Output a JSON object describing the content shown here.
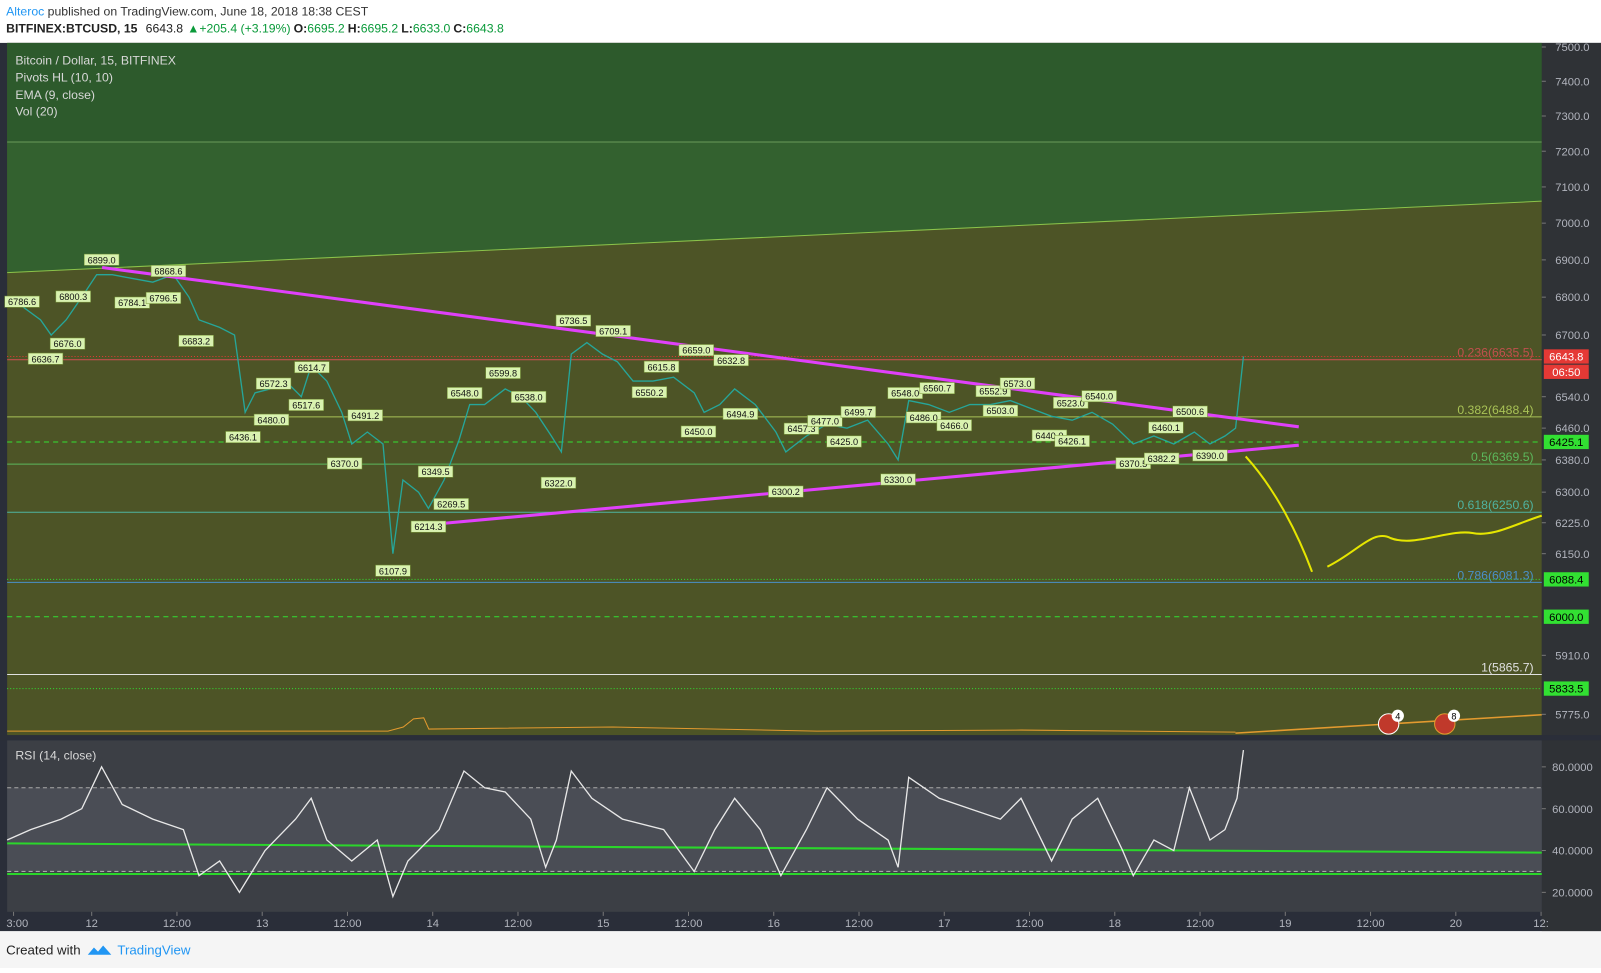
{
  "header": {
    "author": "Alteroc",
    "published": " published on TradingView.com, June 18, 2018 18:38 CEST",
    "symbol": "BITFINEX:BTCUSD, 15",
    "last": "6643.8",
    "change": "▲+205.4 (+3.19%)",
    "ohlc": [
      {
        "label": "O:",
        "value": "6695.2"
      },
      {
        "label": "H:",
        "value": "6695.2"
      },
      {
        "label": "L:",
        "value": "6633.0"
      },
      {
        "label": "C:",
        "value": "6643.8"
      }
    ]
  },
  "legend": [
    "Bitcoin / Dollar, 15, BITFINEX",
    "Pivots HL (10, 10)",
    "EMA (9, close)",
    "Vol (20)"
  ],
  "events": [
    "4",
    "8"
  ],
  "footer": {
    "created": "Created with",
    "brand": "TradingView"
  },
  "chart_data": [
    {
      "type": "line",
      "log_scale": true,
      "color": "#26a69a",
      "xlim": [
        -11.9,
        204.1
      ],
      "ylim": [
        5728,
        7512
      ],
      "yticks": [
        {
          "value": 7500,
          "label": "7500.0"
        },
        {
          "value": 7400,
          "label": "7400.0"
        },
        {
          "value": 7300,
          "label": "7300.0"
        },
        {
          "value": 7200,
          "label": "7200.0"
        },
        {
          "value": 7100,
          "label": "7100.0"
        },
        {
          "value": 7000,
          "label": "7000.0"
        },
        {
          "value": 6900,
          "label": "6900.0"
        },
        {
          "value": 6800,
          "label": "6800.0"
        },
        {
          "value": 6700,
          "label": "6700.0"
        },
        {
          "value": 6540,
          "label": "6540.0"
        },
        {
          "value": 6460,
          "label": "6460.0"
        },
        {
          "value": 6380,
          "label": "6380.0"
        },
        {
          "value": 6300,
          "label": "6300.0"
        },
        {
          "value": 6225,
          "label": "6225.0"
        },
        {
          "value": 6150,
          "label": "6150.0"
        },
        {
          "value": 5910,
          "label": "5910.0"
        },
        {
          "value": 5775,
          "label": "5775.0"
        }
      ],
      "x": [
        -11.9,
        -10.1,
        -7.2,
        -5.7,
        -3.6,
        -1.4,
        0.7,
        2.9,
        5.7,
        8.6,
        11.5,
        13.7,
        15.1,
        18.0,
        20.1,
        21.6,
        23.0,
        25.1,
        27.3,
        29.5,
        30.9,
        33.1,
        35.2,
        36.6,
        38.8,
        41.0,
        42.4,
        43.8,
        46.0,
        47.4,
        49.6,
        51.7,
        53.2,
        55.3,
        58.2,
        60.4,
        62.5,
        64.7,
        66.1,
        67.5,
        69.7,
        71.9,
        74.0,
        76.2,
        79.0,
        81.9,
        84.8,
        86.2,
        88.4,
        90.5,
        93.4,
        96.3,
        97.7,
        100.6,
        103.5,
        106.3,
        109.2,
        112.1,
        113.5,
        115.0,
        117.8,
        120.7,
        123.6,
        126.5,
        129.3,
        132.2,
        135.1,
        138.0,
        140.8,
        143.7,
        146.6,
        149.5,
        152.3,
        155.2,
        157.4,
        159.5,
        161.0,
        162.1
      ],
      "values": [
        6790,
        6780,
        6740,
        6700,
        6740,
        6800,
        6860,
        6860,
        6850,
        6840,
        6860,
        6800,
        6740,
        6720,
        6700,
        6500,
        6550,
        6560,
        6580,
        6540,
        6620,
        6580,
        6500,
        6420,
        6450,
        6420,
        6150,
        6330,
        6300,
        6260,
        6330,
        6430,
        6520,
        6520,
        6560,
        6540,
        6500,
        6440,
        6400,
        6650,
        6680,
        6650,
        6630,
        6580,
        6580,
        6590,
        6550,
        6500,
        6520,
        6560,
        6520,
        6450,
        6400,
        6440,
        6470,
        6460,
        6480,
        6420,
        6380,
        6530,
        6520,
        6500,
        6520,
        6520,
        6530,
        6510,
        6490,
        6480,
        6500,
        6470,
        6420,
        6440,
        6420,
        6450,
        6420,
        6440,
        6460,
        6643.8
      ],
      "pivots": {
        "x": [
          1.4,
          10.8,
          -9.8,
          -2.6,
          5.7,
          10.1,
          14.7,
          -6.5,
          -3.4,
          25.6,
          31.0,
          21.3,
          25.3,
          30.2,
          38.5,
          35.6,
          42.4,
          47.4,
          50.6,
          48.4,
          52.5,
          57.9,
          61.5,
          65.7,
          67.8,
          73.4,
          85.1,
          90.0,
          80.2,
          78.5,
          85.4,
          91.3,
          99.9,
          103.2,
          107.9,
          105.9,
          97.7,
          113.5,
          114.5,
          119.0,
          117.1,
          121.4,
          126.9,
          130.3,
          127.9,
          137.8,
          141.8,
          134.8,
          138.0,
          151.2,
          154.6,
          146.6,
          150.6,
          157.4
        ],
        "values": [
          6899,
          6868.6,
          6786.6,
          6800.3,
          6784.1,
          6796.5,
          6683.2,
          6636.7,
          6676,
          6572.3,
          6614.7,
          6436.1,
          6480,
          6517.6,
          6491.2,
          6370,
          6107.9,
          6214.3,
          6269.5,
          6349.5,
          6548,
          6599.8,
          6538,
          6322,
          6736.5,
          6709.1,
          6659,
          6632.8,
          6615.8,
          6550.2,
          6450,
          6494.9,
          6457.3,
          6477,
          6499.7,
          6425,
          6300.2,
          6330,
          6548,
          6560.7,
          6486,
          6466,
          6552.9,
          6573,
          6503,
          6523,
          6540,
          6440,
          6426.1,
          6460.1,
          6500.6,
          6370.5,
          6382.2,
          6390
        ],
        "value_labels": [
          "6899.0",
          "6868.6",
          "6786.6",
          "6800.3",
          "6784.1",
          "6796.5",
          "6683.2",
          "6636.7",
          "6676.0",
          "6572.3",
          "6614.7",
          "6436.1",
          "6480.0",
          "6517.6",
          "6491.2",
          "6370.0",
          "6107.9",
          "6214.3",
          "6269.5",
          "6349.5",
          "6548.0",
          "6599.8",
          "6538.0",
          "6322.0",
          "6736.5",
          "6709.1",
          "6659.0",
          "6632.8",
          "6615.8",
          "6550.2",
          "6450.0",
          "6494.9",
          "6457.3",
          "6477.0",
          "6499.7",
          "6425.0",
          "6300.2",
          "6330.0",
          "6548.0",
          "6560.7",
          "6486.0",
          "6466.0",
          "6552.9",
          "6573.0",
          "6503.0",
          "6523.0",
          "6540.0",
          "6440.0",
          "6426.1",
          "6460.1",
          "6500.6",
          "6370.5",
          "6382.2",
          "6390.0"
        ]
      },
      "fib": [
        {
          "label": "0.236(6635.5)",
          "value": 6635.5,
          "color": "#c0504d"
        },
        {
          "label": "0.382(6488.4)",
          "value": 6488.4,
          "color": "#a8c256"
        },
        {
          "label": "0.5(6369.5)",
          "value": 6369.5,
          "color": "#5cb85c"
        },
        {
          "label": "0.618(6250.6)",
          "value": 6250.6,
          "color": "#4fb3a0"
        },
        {
          "label": "0.786(6081.3)",
          "value": 6081.3,
          "color": "#4a90c8"
        },
        {
          "label": "1(5865.7)",
          "value": 5865.7,
          "color": "#e0e0e0"
        }
      ],
      "price_lines": [
        {
          "value": 6643.8,
          "label": "6643.8",
          "color": "#e53935"
        },
        {
          "value": 6425.1,
          "label": "6425.1",
          "color": "#32e032"
        },
        {
          "value": 6088.4,
          "label": "6088.4",
          "color": "#32e032"
        },
        {
          "value": 6000,
          "label": "6000.0",
          "color": "#32e032"
        },
        {
          "value": 5833.5,
          "label": "5833.5",
          "color": "#32e032"
        }
      ],
      "countdown": "06:50"
    },
    {
      "type": "line",
      "title": "RSI (14, close)",
      "color": "#e8e8e8",
      "xlim": [
        -11.9,
        204.1
      ],
      "ylim": [
        10.7,
        92.7
      ],
      "bands": [
        30,
        70
      ],
      "yticks": [
        {
          "value": 80,
          "label": "80.0000"
        },
        {
          "value": 60,
          "label": "60.0000"
        },
        {
          "value": 40,
          "label": "40.0000"
        },
        {
          "value": 20,
          "label": "20.0000"
        }
      ],
      "xticks": [
        {
          "value": -11,
          "label": "3:00"
        },
        {
          "value": 0,
          "label": "12"
        },
        {
          "value": 12,
          "label": "12:00"
        },
        {
          "value": 24,
          "label": "13"
        },
        {
          "value": 36,
          "label": "12:00"
        },
        {
          "value": 48,
          "label": "14"
        },
        {
          "value": 60,
          "label": "12:00"
        },
        {
          "value": 72,
          "label": "15"
        },
        {
          "value": 84,
          "label": "12:00"
        },
        {
          "value": 96,
          "label": "16"
        },
        {
          "value": 108,
          "label": "12:00"
        },
        {
          "value": 120,
          "label": "17"
        },
        {
          "value": 132,
          "label": "12:00"
        },
        {
          "value": 144,
          "label": "18"
        },
        {
          "value": 156,
          "label": "12:00"
        },
        {
          "value": 168,
          "label": "19"
        },
        {
          "value": 180,
          "label": "12:00"
        },
        {
          "value": 192,
          "label": "20"
        },
        {
          "value": 204,
          "label": "12:"
        }
      ],
      "x": [
        -11.9,
        -8.6,
        -4.3,
        -1.4,
        1.4,
        4.3,
        8.6,
        12.9,
        15.1,
        18.0,
        20.8,
        24.4,
        28.7,
        30.9,
        33.1,
        36.6,
        40.2,
        42.4,
        44.5,
        48.9,
        52.4,
        55.3,
        58.2,
        61.8,
        63.9,
        65.4,
        67.5,
        70.4,
        74.7,
        80.5,
        84.8,
        87.7,
        90.5,
        94.1,
        97.0,
        100.6,
        103.5,
        107.8,
        112.1,
        113.5,
        115.0,
        119.3,
        123.6,
        127.9,
        130.8,
        135.1,
        138.0,
        141.6,
        145.1,
        146.6,
        149.5,
        152.3,
        154.5,
        157.4,
        159.5,
        161.2,
        162.1
      ],
      "values": [
        45,
        50,
        55,
        60,
        80,
        62,
        55,
        50,
        28,
        35,
        20,
        40,
        55,
        65,
        45,
        35,
        45,
        18,
        35,
        50,
        78,
        70,
        68,
        55,
        32,
        45,
        78,
        65,
        55,
        50,
        30,
        50,
        65,
        50,
        28,
        50,
        70,
        55,
        45,
        32,
        75,
        65,
        60,
        55,
        65,
        35,
        55,
        65,
        40,
        28,
        45,
        40,
        70,
        45,
        50,
        65,
        88
      ]
    }
  ]
}
